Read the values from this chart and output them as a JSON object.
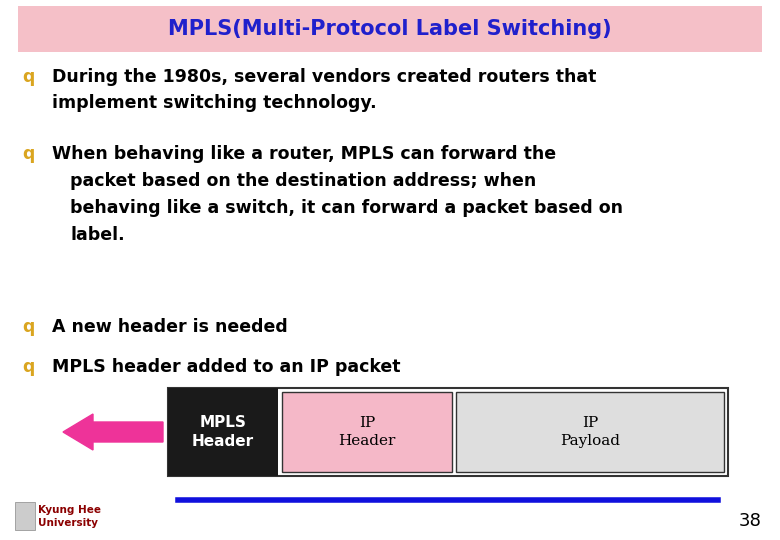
{
  "title": "MPLS(Multi-Protocol Label Switching)",
  "title_color": "#2020CC",
  "title_bg_color": "#F5C0C8",
  "bg_color": "#FFFFFF",
  "bullet_color": "#DAA520",
  "text_color": "#000000",
  "bullet1": "During the 1980s, several vendors created routers that\nimplement switching technology.",
  "bullet2_line1": "When behaving like a router, MPLS can forward the",
  "bullet2_line2": "packet based on the destination address; when",
  "bullet2_line3": "behaving like a switch, it can forward a packet based on",
  "bullet2_line4": "label.",
  "bullet3": "A new header is needed",
  "bullet4": "MPLS header added to an IP packet",
  "footer_text_line1": "Kyung Hee",
  "footer_text_line2": "University",
  "footer_line_color": "#1010DD",
  "page_number": "38",
  "mpls_box_color": "#1A1A1A",
  "mpls_text_color": "#FFFFFF",
  "ip_header_color": "#F5B8C8",
  "ip_payload_color": "#DEDEDE",
  "arrow_color": "#EE3399",
  "diagram_border_color": "#333333"
}
